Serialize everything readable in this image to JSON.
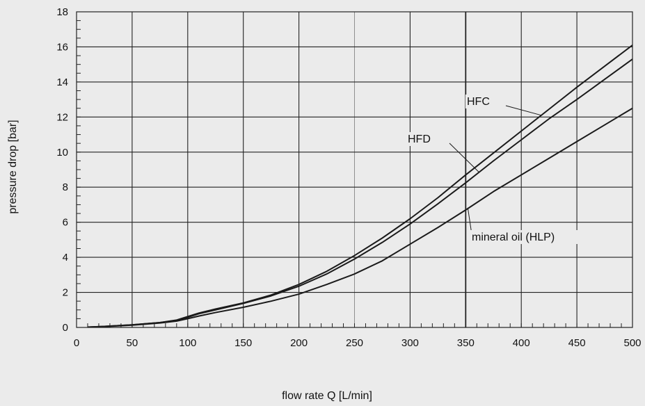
{
  "chart_data": {
    "type": "line",
    "title": "",
    "xlabel": "flow rate Q [L/min]",
    "ylabel": "pressure drop [bar]",
    "xlim": [
      0,
      500
    ],
    "ylim": [
      0,
      18
    ],
    "x_ticks": [
      0,
      50,
      100,
      150,
      200,
      250,
      300,
      350,
      400,
      450,
      500
    ],
    "y_ticks": [
      0,
      2,
      4,
      6,
      8,
      10,
      12,
      14,
      16,
      18
    ],
    "x_tick_labels": [
      "0",
      "50",
      "100",
      "150",
      "200",
      "250",
      "300",
      "350",
      "400",
      "450",
      "500"
    ],
    "y_tick_labels": [
      "0",
      "2",
      "4",
      "6",
      "8",
      "10",
      "12",
      "14",
      "16",
      "18"
    ],
    "grid": true,
    "legend": "none",
    "series": [
      {
        "name": "HFC",
        "x": [
          10,
          25,
          50,
          75,
          90,
          100,
          110,
          125,
          150,
          175,
          200,
          225,
          250,
          275,
          300,
          325,
          350,
          375,
          400,
          425,
          450,
          475,
          500
        ],
        "y": [
          0.02,
          0.06,
          0.15,
          0.28,
          0.42,
          0.62,
          0.82,
          1.05,
          1.4,
          1.85,
          2.45,
          3.2,
          4.1,
          5.1,
          6.2,
          7.4,
          8.7,
          9.95,
          11.2,
          12.45,
          13.7,
          14.9,
          16.1
        ]
      },
      {
        "name": "HFD",
        "x": [
          10,
          25,
          50,
          75,
          90,
          100,
          110,
          125,
          150,
          175,
          200,
          225,
          250,
          275,
          300,
          325,
          350,
          375,
          400,
          425,
          450,
          475,
          500
        ],
        "y": [
          0.02,
          0.06,
          0.15,
          0.28,
          0.4,
          0.58,
          0.78,
          1.0,
          1.37,
          1.8,
          2.35,
          3.05,
          3.9,
          4.85,
          5.9,
          7.05,
          8.25,
          9.5,
          10.7,
          11.9,
          13.0,
          14.15,
          15.3
        ]
      },
      {
        "name": "mineral oil (HLP)",
        "x": [
          10,
          25,
          50,
          75,
          90,
          100,
          110,
          125,
          150,
          175,
          200,
          225,
          250,
          275,
          300,
          325,
          350,
          375,
          400,
          425,
          450,
          475,
          500
        ],
        "y": [
          0.02,
          0.05,
          0.13,
          0.25,
          0.36,
          0.5,
          0.65,
          0.85,
          1.15,
          1.5,
          1.9,
          2.45,
          3.05,
          3.8,
          4.75,
          5.7,
          6.7,
          7.75,
          8.7,
          9.65,
          10.6,
          11.55,
          12.5
        ]
      }
    ],
    "annotations": [
      {
        "text": "HFC",
        "series": "HFC"
      },
      {
        "text": "HFD",
        "series": "HFD"
      },
      {
        "text": "mineral oil (HLP)",
        "series": "mineral oil (HLP)"
      }
    ]
  }
}
